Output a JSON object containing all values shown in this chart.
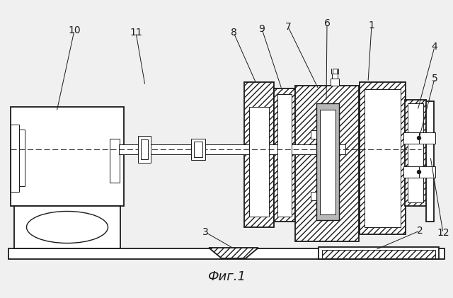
{
  "bg_color": "#f0f0f0",
  "line_color": "#1a1a1a",
  "gray_fill": "#b8b8b8",
  "white_fill": "#ffffff",
  "caption": "Фиг.1",
  "caption_fontsize": 13
}
